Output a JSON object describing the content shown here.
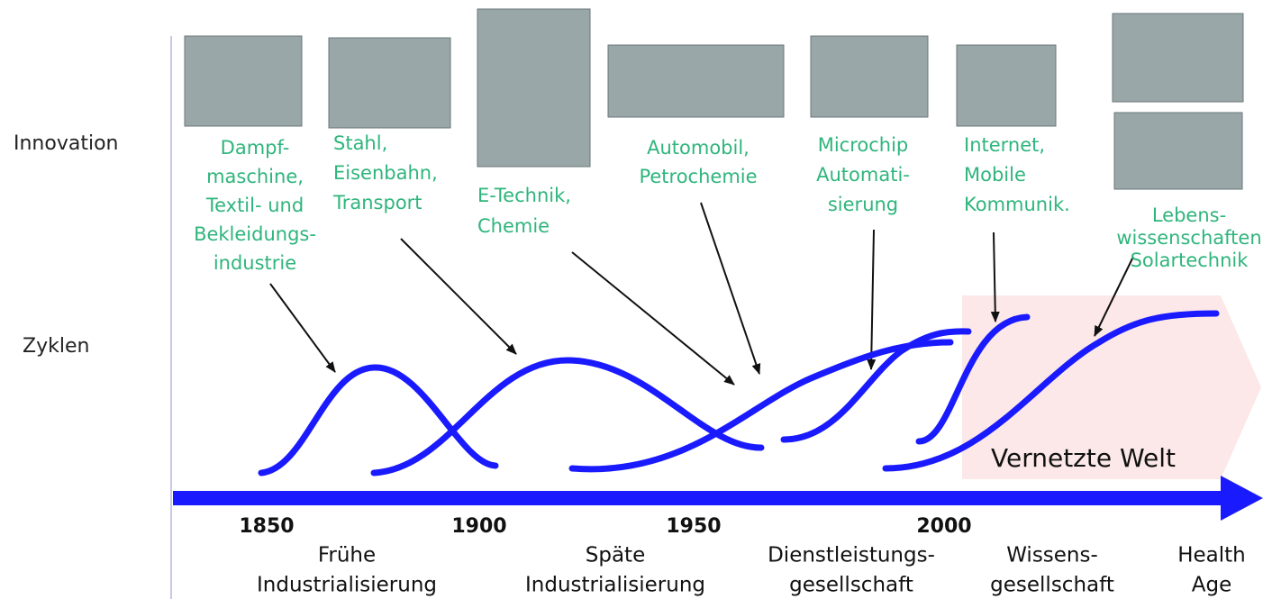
{
  "row_labels": {
    "innovation": "Innovation",
    "cycles": "Zyklen"
  },
  "innovations": [
    {
      "lines": [
        "Dampf-",
        "maschine,",
        "Textil- und",
        "Bekleidungs-",
        "industrie"
      ]
    },
    {
      "lines": [
        "Stahl,",
        "Eisenbahn,",
        "Transport"
      ]
    },
    {
      "lines": [
        "E-Technik,",
        "Chemie"
      ]
    },
    {
      "lines": [
        "Automobil,",
        "Petrochemie"
      ]
    },
    {
      "lines": [
        "Microchip",
        "Automati-",
        "sierung"
      ]
    },
    {
      "lines": [
        "Internet,",
        "Mobile",
        "Kommunik."
      ]
    },
    {
      "lines": [
        "Lebens-",
        "wissenschaften",
        "Solartechnik"
      ]
    }
  ],
  "banner": "Vernetzte Welt",
  "years": [
    "1850",
    "1900",
    "1950",
    "2000"
  ],
  "eras": [
    {
      "lines": [
        "Frühe",
        "Industrialisierung"
      ]
    },
    {
      "lines": [
        "Späte",
        "Industrialisierung"
      ]
    },
    {
      "lines": [
        "Dienstleistungs-",
        "gesellschaft"
      ]
    },
    {
      "lines": [
        "Wissens-",
        "gesellschaft"
      ]
    },
    {
      "lines": [
        "Health",
        "Age"
      ]
    }
  ]
}
